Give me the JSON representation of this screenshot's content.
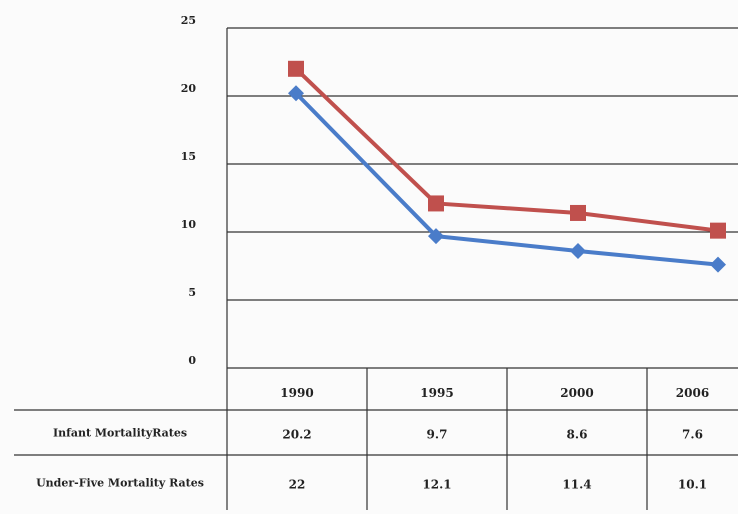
{
  "chart_data": {
    "type": "line",
    "title": "",
    "xlabel": "",
    "ylabel": "",
    "ylim": [
      0,
      25
    ],
    "y_ticks": [
      "0",
      "5",
      "10",
      "15",
      "20",
      "25"
    ],
    "categories": [
      "1990",
      "1995",
      "2000",
      "2006"
    ],
    "grid": true,
    "legend": "table-below",
    "series": [
      {
        "name": "Infant MortalityRates",
        "values": [
          20.2,
          9.7,
          8.6,
          7.6
        ],
        "labels": [
          "20.2",
          "9.7",
          "8.6",
          "7.6"
        ],
        "color": "#4a7cc9",
        "marker": "diamond"
      },
      {
        "name": "Under-Five Mortality Rates",
        "values": [
          22,
          12.1,
          11.4,
          10.1
        ],
        "labels": [
          "22",
          "12.1",
          "11.4",
          "10.1"
        ],
        "color": "#c0504d",
        "marker": "square"
      }
    ]
  }
}
